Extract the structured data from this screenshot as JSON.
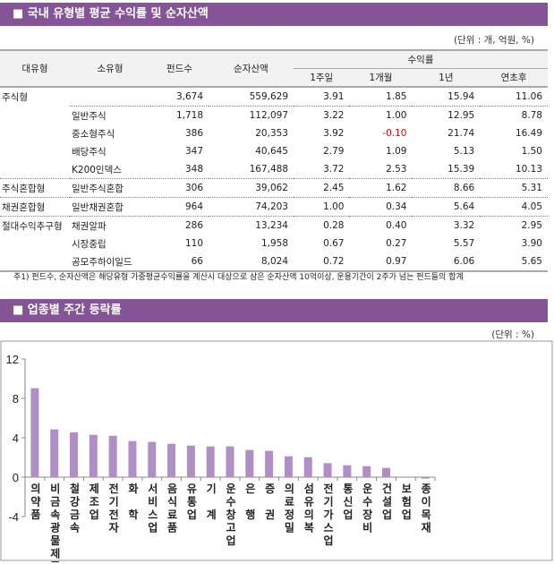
{
  "section1": {
    "title": "■ 국내 유형별 평균 수익률 및 순자산액",
    "unit": "(단위 : 개, 억원, %)"
  },
  "table": {
    "headers": {
      "major": "대유형",
      "minor": "소유형",
      "funds": "펀드수",
      "assets": "순자산액",
      "returns": "수익률",
      "w1": "1주일",
      "m1": "1개월",
      "y1": "1년",
      "ytd": "연초후"
    },
    "rows": [
      {
        "major": "주식형",
        "minor": "",
        "funds": "3,674",
        "assets": "559,629",
        "w1": "3.91",
        "m1": "1.85",
        "y1": "15.94",
        "ytd": "11.06",
        "grp": true
      },
      {
        "major": "",
        "minor": "일반주식",
        "funds": "1,718",
        "assets": "112,097",
        "w1": "3.22",
        "m1": "1.00",
        "y1": "12.95",
        "ytd": "8.78",
        "grp": true
      },
      {
        "major": "",
        "minor": "중소형주식",
        "funds": "386",
        "assets": "20,353",
        "w1": "3.92",
        "m1": "-0.10",
        "y1": "21.74",
        "ytd": "16.49"
      },
      {
        "major": "",
        "minor": "배당주식",
        "funds": "347",
        "assets": "40,645",
        "w1": "2.79",
        "m1": "1.09",
        "y1": "5.13",
        "ytd": "1.50"
      },
      {
        "major": "",
        "minor": "K200인덱스",
        "funds": "348",
        "assets": "167,488",
        "w1": "3.72",
        "m1": "2.53",
        "y1": "15.39",
        "ytd": "10.13"
      },
      {
        "major": "주식혼합형",
        "minor": "일반주식혼합",
        "funds": "306",
        "assets": "39,062",
        "w1": "2.45",
        "m1": "1.62",
        "y1": "8.66",
        "ytd": "5.31",
        "grp": true
      },
      {
        "major": "채권혼합형",
        "minor": "일반채권혼합",
        "funds": "964",
        "assets": "74,203",
        "w1": "1.00",
        "m1": "0.34",
        "y1": "5.64",
        "ytd": "4.05",
        "grp": true
      },
      {
        "major": "절대수익추구형",
        "minor": "채권알파",
        "funds": "286",
        "assets": "13,234",
        "w1": "0.28",
        "m1": "0.40",
        "y1": "3.32",
        "ytd": "2.95",
        "grp": true
      },
      {
        "major": "",
        "minor": "시장중립",
        "funds": "110",
        "assets": "1,958",
        "w1": "0.67",
        "m1": "0.27",
        "y1": "5.57",
        "ytd": "3.90"
      },
      {
        "major": "",
        "minor": "공모주하이일드",
        "funds": "66",
        "assets": "8,024",
        "w1": "0.72",
        "m1": "0.97",
        "y1": "6.06",
        "ytd": "5.65"
      }
    ],
    "negative_color": "#e00000"
  },
  "note": "주1) 펀드수, 순자산액은 해당유형 가중평균수익률을 계산시 대상으로 삼은 순자산액 10억이상, 운용기간이 2주가 넘는 펀드들의 합계",
  "section2": {
    "title": "■ 업종별 주간 등락률",
    "unit": "(단위 : %)"
  },
  "chart_data": {
    "type": "bar",
    "categories": [
      "의약품",
      "비금속광물제품",
      "철강금속",
      "제조업",
      "전기전자",
      "화 학",
      "서비스업",
      "음식료품",
      "유통업",
      "기 계",
      "운수창고업",
      "은 행",
      "증 권",
      "의료정밀",
      "섬유의복",
      "전기가스업",
      "통신업",
      "운수장비",
      "건설업",
      "보험업",
      "종이목재"
    ],
    "values": [
      9.03,
      4.85,
      4.55,
      4.3,
      4.2,
      3.67,
      3.58,
      3.39,
      3.2,
      3.12,
      3.12,
      2.76,
      2.67,
      2.12,
      2.03,
      1.42,
      1.21,
      1.12,
      0.94,
      0.0,
      -0.15
    ],
    "ylim": [
      -4,
      12
    ],
    "yticks": [
      "12",
      "8",
      "4",
      "0",
      "-4"
    ],
    "bar_color": "#b08fc4",
    "grid": false,
    "legend": "none"
  }
}
